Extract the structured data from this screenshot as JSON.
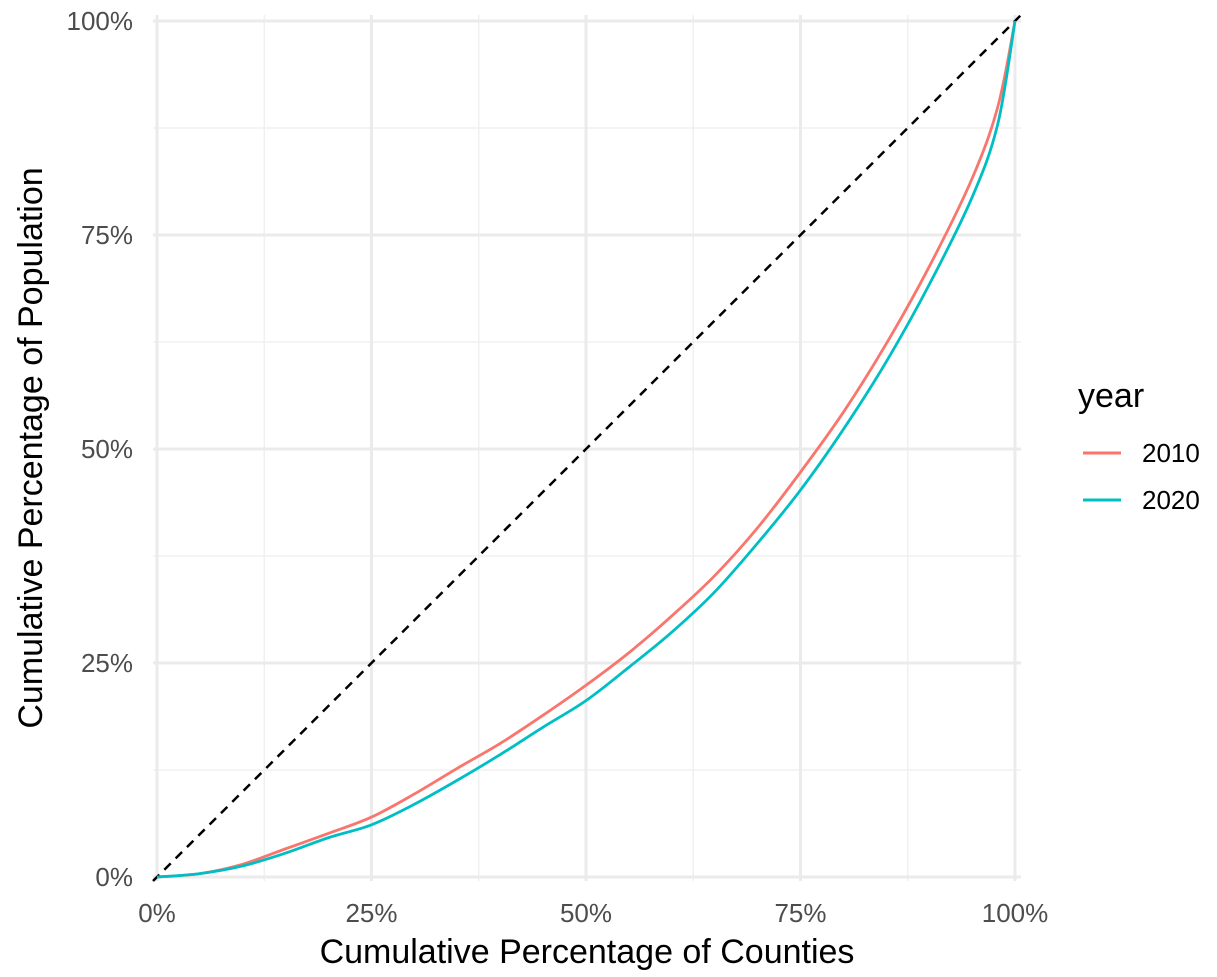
{
  "chart_data": {
    "type": "line",
    "title": "",
    "xlabel": "Cumulative Percentage of Counties",
    "ylabel": "Cumulative Percentage of Population",
    "xlim": [
      0,
      100
    ],
    "ylim": [
      0,
      100
    ],
    "x_ticks": [
      0,
      25,
      50,
      75,
      100
    ],
    "x_tick_labels": [
      "0%",
      "25%",
      "50%",
      "75%",
      "100%"
    ],
    "y_ticks": [
      0,
      25,
      50,
      75,
      100
    ],
    "y_tick_labels": [
      "0%",
      "25%",
      "50%",
      "75%",
      "100%"
    ],
    "grid": true,
    "legend": {
      "title": "year",
      "position": "right"
    },
    "reference_line": {
      "x": [
        0,
        100
      ],
      "y": [
        0,
        100
      ],
      "style": "dashed",
      "color": "#000000"
    },
    "series": [
      {
        "name": "2010",
        "color": "#F8766D",
        "x": [
          0,
          5,
          10,
          15,
          20,
          25,
          30,
          35,
          40,
          45,
          50,
          55,
          60,
          65,
          70,
          75,
          80,
          85,
          90,
          95,
          98,
          100
        ],
        "y": [
          0,
          0.4,
          1.5,
          3.3,
          5.1,
          7.0,
          9.7,
          12.7,
          15.6,
          18.9,
          22.4,
          26.2,
          30.5,
          35.2,
          40.8,
          47.3,
          54.3,
          62.3,
          71.3,
          81.6,
          90.0,
          100
        ]
      },
      {
        "name": "2020",
        "color": "#00BFC4",
        "x": [
          0,
          5,
          10,
          15,
          20,
          25,
          30,
          35,
          40,
          45,
          50,
          55,
          60,
          65,
          70,
          75,
          80,
          85,
          90,
          95,
          98,
          100
        ],
        "y": [
          0,
          0.4,
          1.3,
          2.8,
          4.6,
          6.1,
          8.5,
          11.3,
          14.3,
          17.5,
          20.6,
          24.5,
          28.6,
          33.3,
          39.0,
          45.2,
          52.3,
          60.2,
          69.2,
          79.4,
          88.0,
          100
        ]
      }
    ]
  }
}
